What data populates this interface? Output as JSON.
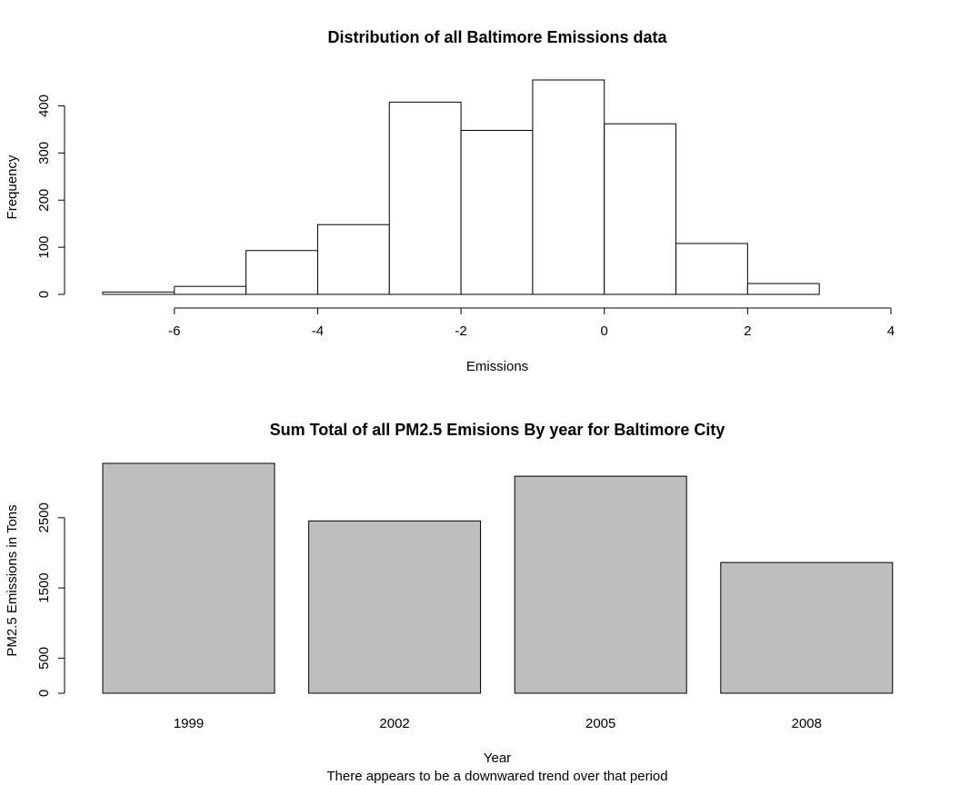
{
  "chart_data": [
    {
      "type": "bar",
      "subtype": "histogram",
      "title": "Distribution of all Baltimore Emissions data",
      "xlabel": "Emissions",
      "ylabel": "Frequency",
      "bins": [
        {
          "x0": -7,
          "x1": -6,
          "count": 5
        },
        {
          "x0": -6,
          "x1": -5,
          "count": 17
        },
        {
          "x0": -5,
          "x1": -4,
          "count": 93
        },
        {
          "x0": -4,
          "x1": -3,
          "count": 148
        },
        {
          "x0": -3,
          "x1": -2,
          "count": 408
        },
        {
          "x0": -2,
          "x1": -1,
          "count": 348
        },
        {
          "x0": -1,
          "x1": 0,
          "count": 455
        },
        {
          "x0": 0,
          "x1": 1,
          "count": 362
        },
        {
          "x0": 1,
          "x1": 2,
          "count": 108
        },
        {
          "x0": 2,
          "x1": 3,
          "count": 23
        },
        {
          "x0": 3,
          "x1": 4,
          "count": 0
        }
      ],
      "xlim": [
        -7,
        4
      ],
      "ylim": [
        0,
        455
      ],
      "x_ticks": [
        -6,
        -4,
        -2,
        0,
        2,
        4
      ],
      "y_ticks": [
        0,
        100,
        200,
        300,
        400
      ],
      "x_tick_labels": [
        "-6",
        "-4",
        "-2",
        "0",
        "2",
        "4"
      ],
      "y_tick_labels": [
        "0",
        "100",
        "200",
        "300",
        "400"
      ],
      "bar_fill": "#ffffff",
      "grid": false
    },
    {
      "type": "bar",
      "title": "Sum Total of all PM2.5 Emisions By year for Baltimore City",
      "xlabel": "Year",
      "ylabel": "PM2.5 Emissions in Tons",
      "subtitle": "There appears to be a downwared trend over that period",
      "categories": [
        "1999",
        "2002",
        "2005",
        "2008"
      ],
      "values": [
        3274,
        2454,
        3091,
        1862
      ],
      "ylim": [
        0,
        3274
      ],
      "y_ticks": [
        0,
        500,
        1500,
        2500
      ],
      "y_tick_labels": [
        "0",
        "500",
        "1500",
        "2500"
      ],
      "bar_fill": "#bebebe",
      "grid": false
    }
  ]
}
